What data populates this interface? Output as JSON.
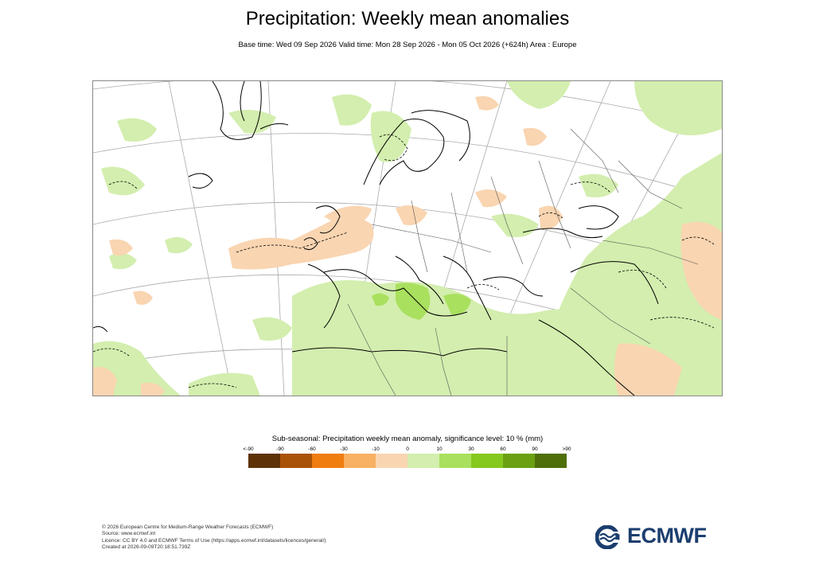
{
  "header": {
    "title": "Precipitation: Weekly mean anomalies",
    "subtitle": "Base time: Wed 09 Sep 2026 Valid time: Mon 28 Sep 2026 - Mon 05 Oct 2026 (+624h) Area : Europe"
  },
  "legend": {
    "title": "Sub-seasonal: Precipitation weekly mean anomaly, significance level: 10 % (mm)",
    "ticks": [
      "<-90",
      "-90",
      "-60",
      "-30",
      "-10",
      "0",
      "10",
      "30",
      "60",
      "90",
      ">90"
    ],
    "colors": [
      "#5e3206",
      "#a95309",
      "#ef7d10",
      "#f8b062",
      "#f9d5b1",
      "#d3eeae",
      "#a9e05e",
      "#85c81e",
      "#6aa012",
      "#4e6f0a"
    ]
  },
  "map": {
    "region": "Europe",
    "colors": {
      "dry_light": "#f9d5b1",
      "wet_light": "#d3eeae",
      "wet_medium": "#a9e05e",
      "coastline": "#000000",
      "border": "#555555",
      "grid": "#999999"
    }
  },
  "footer": {
    "line1": "© 2026 European Centre for Medium-Range Weather Forecasts (ECMWF)",
    "line2": "Source: www.ecmwf.int",
    "line3": "Licence: CC BY 4.0 and ECMWF Terms of Use (https://apps.ecmwf.int/datasets/licences/general/)",
    "line4": "Created at 2026-09-09T20:18:51.739Z"
  },
  "logo": {
    "text": "ECMWF"
  }
}
